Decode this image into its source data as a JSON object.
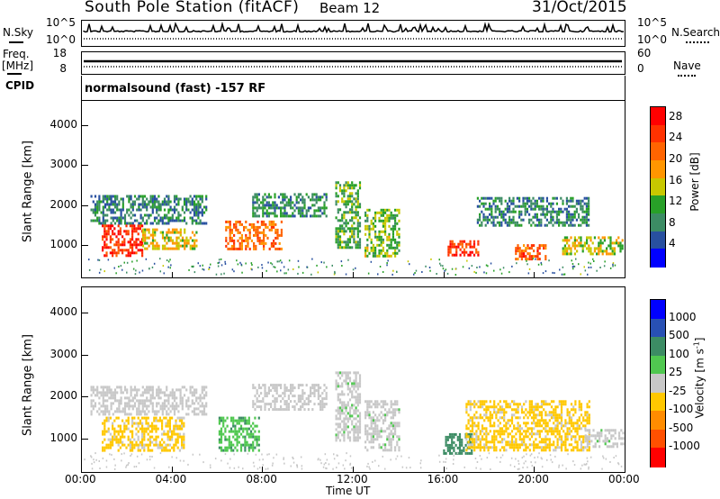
{
  "header": {
    "station": "South Pole Station (fitACF)",
    "beam": "Beam 12",
    "date": "31/Oct/2015"
  },
  "summary_panels": {
    "nsky_label": "N.Sky",
    "nsearch_label": "N.Search",
    "nsky_ticks": [
      "10^5",
      "10^0"
    ],
    "nsearch_ticks": [
      "10^5",
      "10^0"
    ],
    "freq_label": "Freq.",
    "freq_unit": "[MHz]",
    "freq_ticks": [
      "18",
      "8"
    ],
    "nave_label": "Nave",
    "nave_ticks": [
      "60",
      "0"
    ],
    "cpid_label": "CPID",
    "cpid_text": "normalsound (fast) -157 RF"
  },
  "colors": {
    "power": [
      "#0000ff",
      "#2850a0",
      "#3c8c64",
      "#28a028",
      "#c8c800",
      "#ff9600",
      "#ff6400",
      "#ff3200",
      "#ff0000"
    ],
    "velocity": [
      "#0000ff",
      "#2850b4",
      "#3c8c64",
      "#50c850",
      "#c8c8c8",
      "#ffc800",
      "#ff8c00",
      "#ff5000",
      "#ff0000"
    ]
  },
  "chart_data": [
    {
      "type": "heatmap",
      "name": "power",
      "ylabel": "Slant Range [km]",
      "xlabel": "Time UT",
      "x_ticks": [
        "00:00",
        "04:00",
        "08:00",
        "12:00",
        "16:00",
        "20:00",
        "00:00"
      ],
      "y_ticks": [
        "1000",
        "2000",
        "3000",
        "4000"
      ],
      "ylim": [
        200,
        4600
      ],
      "xlim_hours": [
        0,
        24
      ],
      "colorbar": {
        "label": "Power [dB]",
        "ticks": [
          "4",
          "8",
          "12",
          "16",
          "20",
          "24",
          "28"
        ],
        "range": [
          0,
          30
        ]
      },
      "regions": [
        {
          "t0": 0.3,
          "t1": 5.5,
          "r0": 1550,
          "r1": 2250,
          "value": 8
        },
        {
          "t0": 0.8,
          "t1": 2.6,
          "r0": 700,
          "r1": 1500,
          "value": 26
        },
        {
          "t0": 2.6,
          "t1": 5.0,
          "r0": 850,
          "r1": 1400,
          "value": 16
        },
        {
          "t0": 6.3,
          "t1": 8.8,
          "r0": 900,
          "r1": 1600,
          "value": 21
        },
        {
          "t0": 7.5,
          "t1": 10.8,
          "r0": 1700,
          "r1": 2300,
          "value": 9
        },
        {
          "t0": 11.2,
          "t1": 12.3,
          "r0": 900,
          "r1": 2600,
          "value": 11
        },
        {
          "t0": 12.5,
          "t1": 14.0,
          "r0": 700,
          "r1": 1900,
          "value": 13
        },
        {
          "t0": 16.2,
          "t1": 17.6,
          "r0": 700,
          "r1": 1100,
          "value": 25
        },
        {
          "t0": 17.5,
          "t1": 22.5,
          "r0": 1500,
          "r1": 2200,
          "value": 8
        },
        {
          "t0": 19.2,
          "t1": 20.6,
          "r0": 600,
          "r1": 1000,
          "value": 23
        },
        {
          "t0": 21.3,
          "t1": 24.0,
          "r0": 750,
          "r1": 1200,
          "value": 15
        }
      ]
    },
    {
      "type": "heatmap",
      "name": "velocity",
      "ylabel": "Slant Range [km]",
      "xlabel": "Time UT",
      "x_ticks": [
        "00:00",
        "04:00",
        "08:00",
        "12:00",
        "16:00",
        "20:00",
        "00:00"
      ],
      "y_ticks": [
        "1000",
        "2000",
        "3000",
        "4000"
      ],
      "ylim": [
        200,
        4600
      ],
      "xlim_hours": [
        0,
        24
      ],
      "colorbar": {
        "label": "Velocity [m s^-1]",
        "ticks": [
          "1000",
          "500",
          "100",
          "25",
          "-25",
          "-100",
          "-500",
          "-1000"
        ],
        "range": [
          -1000,
          1000
        ]
      },
      "regions": [
        {
          "t0": 0.3,
          "t1": 5.5,
          "r0": 1550,
          "r1": 2250,
          "value": 0
        },
        {
          "t0": 0.8,
          "t1": 4.5,
          "r0": 700,
          "r1": 1500,
          "value": -150
        },
        {
          "t0": 6.0,
          "t1": 7.8,
          "r0": 700,
          "r1": 1500,
          "value": 300
        },
        {
          "t0": 7.5,
          "t1": 10.8,
          "r0": 1700,
          "r1": 2300,
          "value": 0
        },
        {
          "t0": 11.2,
          "t1": 12.3,
          "r0": 900,
          "r1": 2600,
          "value": 60
        },
        {
          "t0": 12.5,
          "t1": 14.0,
          "r0": 700,
          "r1": 1900,
          "value": 60
        },
        {
          "t0": 16.0,
          "t1": 17.3,
          "r0": 600,
          "r1": 1100,
          "value": 400
        },
        {
          "t0": 17.0,
          "t1": 22.5,
          "r0": 700,
          "r1": 1900,
          "value": -150
        },
        {
          "t0": 22.3,
          "t1": 24.0,
          "r0": 750,
          "r1": 1200,
          "value": 60
        }
      ]
    }
  ]
}
